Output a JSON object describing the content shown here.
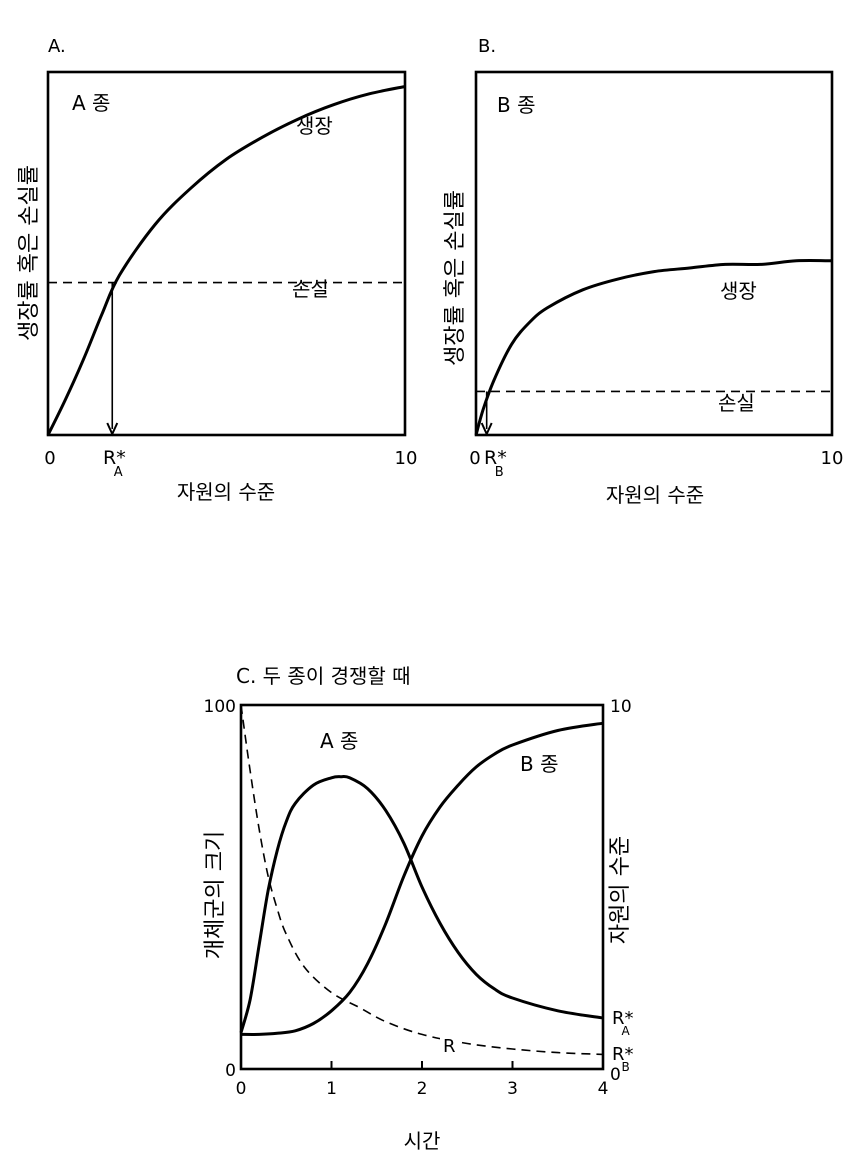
{
  "chart_data": [
    {
      "type": "line",
      "panel_label": "A.",
      "species_label": "A 종",
      "ylabel": "생장률 혹은 손실률",
      "xlabel": "자원의 수준",
      "xlim": [
        0,
        10
      ],
      "x_ticks": [
        "0",
        "10"
      ],
      "rstar_label": "R*",
      "rstar_sub": "A",
      "rstar_value": 1.8,
      "growth_label": "생장",
      "loss_label": "손실",
      "series": [
        {
          "name": "생장",
          "x": [
            0,
            0.5,
            1,
            1.5,
            2,
            3,
            4,
            5,
            6,
            7,
            8,
            9,
            10
          ],
          "y": [
            0,
            0.1,
            0.21,
            0.33,
            0.44,
            0.58,
            0.68,
            0.76,
            0.82,
            0.87,
            0.91,
            0.94,
            0.96
          ]
        },
        {
          "name": "손실",
          "x": [
            0,
            10
          ],
          "y": [
            0.42,
            0.42
          ]
        }
      ]
    },
    {
      "type": "line",
      "panel_label": "B.",
      "species_label": "B 종",
      "ylabel": "생장률 혹은 손실률",
      "xlabel": "자원의 수준",
      "xlim": [
        0,
        10
      ],
      "x_ticks": [
        "0",
        "10"
      ],
      "rstar_label": "R*",
      "rstar_sub": "B",
      "rstar_value": 0.3,
      "growth_label": "생장",
      "loss_label": "손실",
      "series": [
        {
          "name": "생장",
          "x": [
            0,
            0.2,
            0.5,
            1,
            1.5,
            2,
            3,
            4,
            5,
            6,
            7,
            8,
            9,
            10
          ],
          "y": [
            0,
            0.07,
            0.15,
            0.25,
            0.31,
            0.35,
            0.4,
            0.43,
            0.45,
            0.46,
            0.47,
            0.47,
            0.48,
            0.48
          ]
        },
        {
          "name": "손실",
          "x": [
            0,
            10
          ],
          "y": [
            0.12,
            0.12
          ]
        }
      ]
    },
    {
      "type": "line",
      "title": "C. 두 종이 경쟁할 때",
      "xlabel": "시간",
      "ylabel_left": "개체군의 크기",
      "ylabel_right": "자원의 수준",
      "x_ticks": [
        0,
        1,
        2,
        3,
        4
      ],
      "xlim": [
        0,
        4
      ],
      "ylim_left": [
        0,
        100
      ],
      "ylim_right": [
        0,
        10
      ],
      "left_tick_labels": [
        "0",
        "100"
      ],
      "right_tick_labels": [
        "0",
        "10"
      ],
      "right_rstar": [
        {
          "label": "R*",
          "sub": "A",
          "value": 1.4
        },
        {
          "label": "R*",
          "sub": "B",
          "value": 0.4
        }
      ],
      "series": [
        {
          "name": "A 종",
          "x": [
            0,
            0.1,
            0.2,
            0.3,
            0.4,
            0.5,
            0.6,
            0.8,
            1.0,
            1.1,
            1.2,
            1.4,
            1.6,
            1.8,
            2.0,
            2.2,
            2.4,
            2.6,
            2.8,
            3.0,
            3.5,
            4.0
          ],
          "y": [
            10,
            19,
            34,
            49,
            60,
            68,
            73,
            78,
            80,
            80.3,
            80,
            77,
            71,
            62,
            50,
            40,
            32,
            26,
            22,
            19.5,
            16,
            14
          ]
        },
        {
          "name": "B 종",
          "x": [
            0,
            0.2,
            0.4,
            0.6,
            0.8,
            1.0,
            1.2,
            1.4,
            1.6,
            1.8,
            2.0,
            2.2,
            2.4,
            2.6,
            2.8,
            3.0,
            3.5,
            4.0
          ],
          "y": [
            9.5,
            9.5,
            9.8,
            10.5,
            12.5,
            16,
            21,
            29,
            40,
            53,
            64,
            72,
            78,
            83,
            86.5,
            89,
            93,
            95
          ]
        },
        {
          "name": "R",
          "x": [
            0,
            0.1,
            0.2,
            0.3,
            0.4,
            0.5,
            0.7,
            1.0,
            1.3,
            1.6,
            2.0,
            2.5,
            3.0,
            3.5,
            4.0
          ],
          "y": [
            10,
            8.2,
            6.6,
            5.3,
            4.4,
            3.7,
            2.8,
            2.1,
            1.7,
            1.3,
            0.95,
            0.7,
            0.55,
            0.45,
            0.4
          ]
        }
      ],
      "series_labels": {
        "a": "A 종",
        "b": "B 종",
        "r": "R"
      }
    }
  ]
}
